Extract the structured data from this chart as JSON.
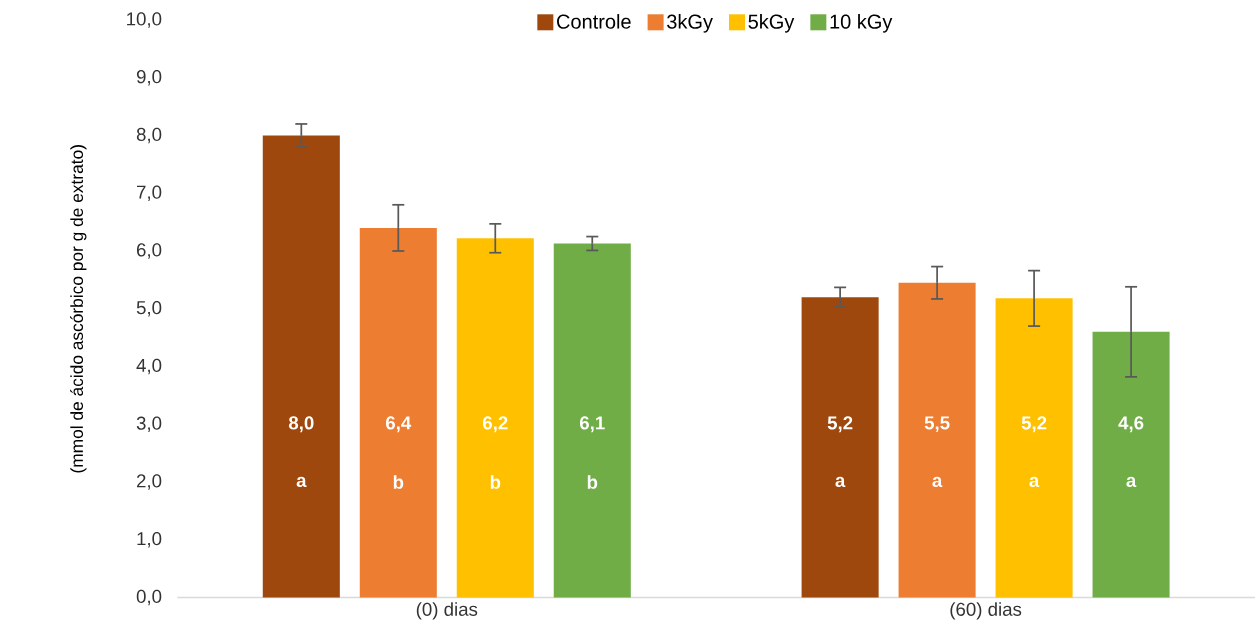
{
  "chart_data": {
    "type": "bar",
    "ylabel": "(mmol de ácido ascórbico por g de extrato)",
    "categories": [
      "(0) dias",
      "(60) dias"
    ],
    "series": [
      {
        "name": "Controle",
        "color": "#9e480e",
        "values": [
          8.0,
          5.2
        ],
        "errors": [
          0.2,
          0.17
        ],
        "value_labels": [
          "8,0",
          "5,2"
        ]
      },
      {
        "name": "3kGy",
        "color": "#ed7d31",
        "values": [
          6.4,
          5.45
        ],
        "errors": [
          0.4,
          0.28
        ],
        "value_labels": [
          "6,4",
          "5,5"
        ]
      },
      {
        "name": "5kGy",
        "color": "#ffc000",
        "values": [
          6.22,
          5.18
        ],
        "errors": [
          0.25,
          0.48
        ],
        "value_labels": [
          "6,2",
          "5,2"
        ]
      },
      {
        "name": "10 kGy",
        "color": "#70ad47",
        "values": [
          6.13,
          4.6
        ],
        "errors": [
          0.12,
          0.78
        ],
        "value_labels": [
          "6,1",
          "4,6"
        ]
      }
    ],
    "annotations": [
      "a",
      "a",
      "b",
      "a",
      "b",
      "a",
      "b",
      "a"
    ],
    "ylim": [
      0,
      10
    ],
    "yticks": [
      {
        "value": 0,
        "label": "0,0"
      },
      {
        "value": 1,
        "label": "1,0"
      },
      {
        "value": 2,
        "label": "2,0"
      },
      {
        "value": 3,
        "label": "3,0"
      },
      {
        "value": 4,
        "label": "4,0"
      },
      {
        "value": 5,
        "label": "5,0"
      },
      {
        "value": 6,
        "label": "6,0"
      },
      {
        "value": 7,
        "label": "7,0"
      },
      {
        "value": 8,
        "label": "8,0"
      },
      {
        "value": 9,
        "label": "9,0"
      },
      {
        "value": 10,
        "label": "10,0"
      }
    ],
    "legend": "top"
  }
}
